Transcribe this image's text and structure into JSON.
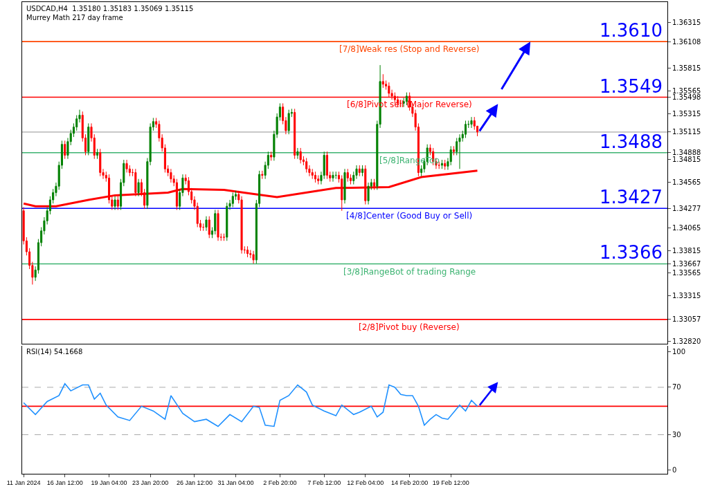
{
  "chart_data": [
    {
      "type": "candlestick",
      "title": "USDCAD,H4  1.35180 1.35183 1.35069 1.35115",
      "subtitle": "Murrey Math 217 day frame",
      "categories": [
        null,
        null,
        null,
        null,
        null,
        null,
        null,
        null,
        null,
        null,
        null,
        null,
        null,
        null,
        null,
        null,
        null,
        null,
        null,
        null,
        null,
        null,
        null,
        null,
        null,
        null,
        null,
        null,
        null,
        null,
        null,
        null,
        null,
        null,
        null,
        null,
        null,
        null,
        null,
        null,
        null,
        null,
        null,
        null,
        null,
        null,
        null,
        null,
        null,
        null,
        null,
        null,
        null,
        null,
        null,
        null,
        null,
        null,
        null,
        null,
        null,
        null,
        null,
        null,
        null,
        null,
        null,
        null,
        null,
        null,
        null,
        null,
        null,
        null,
        null,
        null,
        null,
        null,
        null,
        null,
        null,
        null,
        null,
        null,
        null,
        null,
        null,
        null,
        null,
        null,
        null,
        null,
        null,
        null,
        null,
        null,
        null,
        null,
        null,
        null,
        null,
        null,
        null,
        null,
        null,
        null,
        null,
        null,
        null,
        null,
        null,
        null,
        null,
        null,
        null,
        null,
        null,
        null,
        null,
        null,
        null,
        null,
        null,
        null,
        null,
        null,
        null,
        null,
        null,
        null,
        null,
        null,
        null,
        null,
        null,
        null,
        null,
        null,
        null,
        null,
        null,
        null,
        null,
        null,
        null,
        null,
        null,
        null,
        null,
        null,
        null,
        null,
        null,
        null,
        null,
        null,
        null,
        null,
        null,
        null,
        null,
        null,
        null,
        null,
        null,
        null,
        null,
        null,
        null,
        null,
        null,
        null,
        null,
        null,
        null,
        null,
        null,
        null,
        null,
        null,
        null,
        null,
        null,
        null,
        null,
        null,
        null,
        null,
        null,
        null,
        null,
        null,
        null,
        null,
        null,
        null,
        null,
        null,
        null,
        null,
        null,
        null,
        null,
        null,
        null,
        null,
        null,
        null,
        null,
        null,
        null,
        null,
        null,
        null,
        null,
        null,
        null,
        null,
        null
      ],
      "ohlc": [
        [
          1.3425,
          1.3429,
          1.3388,
          1.3392
        ],
        [
          1.3392,
          1.3396,
          1.3376,
          1.338
        ],
        [
          1.338,
          1.3384,
          1.3361,
          1.3365
        ],
        [
          1.3365,
          1.3369,
          1.3344,
          1.3352
        ],
        [
          1.3352,
          1.3364,
          1.3348,
          1.336
        ],
        [
          1.336,
          1.3394,
          1.3356,
          1.339
        ],
        [
          1.339,
          1.3407,
          1.3386,
          1.3403
        ],
        [
          1.3403,
          1.3418,
          1.3399,
          1.3414
        ],
        [
          1.3414,
          1.3429,
          1.341,
          1.3425
        ],
        [
          1.3425,
          1.3441,
          1.3421,
          1.3437
        ],
        [
          1.3437,
          1.3449,
          1.3433,
          1.3445
        ],
        [
          1.3445,
          1.3456,
          1.3441,
          1.3452
        ],
        [
          1.3452,
          1.3479,
          1.3448,
          1.3475
        ],
        [
          1.3475,
          1.3502,
          1.3471,
          1.3498
        ],
        [
          1.3498,
          1.3502,
          1.3482,
          1.3486
        ],
        [
          1.3486,
          1.3505,
          1.3482,
          1.3501
        ],
        [
          1.3501,
          1.3514,
          1.3497,
          1.351
        ],
        [
          1.351,
          1.3521,
          1.3506,
          1.3517
        ],
        [
          1.3517,
          1.353,
          1.3513,
          1.3526
        ],
        [
          1.3526,
          1.3536,
          1.3522,
          1.353
        ],
        [
          1.353,
          1.3534,
          1.3501,
          1.3505
        ],
        [
          1.3505,
          1.3509,
          1.3486,
          1.349
        ],
        [
          1.349,
          1.3521,
          1.3486,
          1.3517
        ],
        [
          1.3517,
          1.3521,
          1.3501,
          1.3505
        ],
        [
          1.3505,
          1.3509,
          1.3482,
          1.3486
        ],
        [
          1.3486,
          1.3493,
          1.3482,
          1.3489
        ],
        [
          1.3489,
          1.3493,
          1.3463,
          1.3467
        ],
        [
          1.3467,
          1.3471,
          1.346,
          1.3464
        ],
        [
          1.3464,
          1.3468,
          1.3457,
          1.3461
        ],
        [
          1.3461,
          1.3465,
          1.3433,
          1.3437
        ],
        [
          1.3437,
          1.3441,
          1.3426,
          1.343
        ],
        [
          1.343,
          1.3441,
          1.3426,
          1.3437
        ],
        [
          1.3437,
          1.3441,
          1.3426,
          1.343
        ],
        [
          1.343,
          1.346,
          1.3426,
          1.3456
        ],
        [
          1.3456,
          1.3481,
          1.3452,
          1.3477
        ],
        [
          1.3477,
          1.3481,
          1.3467,
          1.3471
        ],
        [
          1.3471,
          1.3475,
          1.3463,
          1.3467
        ],
        [
          1.3467,
          1.3471,
          1.3463,
          1.3467
        ],
        [
          1.3467,
          1.3471,
          1.3441,
          1.3445
        ],
        [
          1.3445,
          1.346,
          1.3441,
          1.3456
        ],
        [
          1.3456,
          1.346,
          1.3441,
          1.3445
        ],
        [
          1.3445,
          1.3449,
          1.3427,
          1.3431
        ],
        [
          1.3431,
          1.3483,
          1.3427,
          1.3479
        ],
        [
          1.3479,
          1.3521,
          1.3475,
          1.3517
        ],
        [
          1.3517,
          1.3527,
          1.3513,
          1.3523
        ],
        [
          1.3523,
          1.3527,
          1.3516,
          1.352
        ],
        [
          1.352,
          1.3524,
          1.3501,
          1.3505
        ],
        [
          1.3505,
          1.3509,
          1.349,
          1.3494
        ],
        [
          1.3494,
          1.3498,
          1.3467,
          1.3471
        ],
        [
          1.3471,
          1.3475,
          1.3463,
          1.3467
        ],
        [
          1.3467,
          1.3471,
          1.3456,
          1.346
        ],
        [
          1.346,
          1.3464,
          1.3452,
          1.3456
        ],
        [
          1.3456,
          1.346,
          1.3426,
          1.343
        ],
        [
          1.343,
          1.3449,
          1.3426,
          1.3445
        ],
        [
          1.3445,
          1.3465,
          1.3441,
          1.3461
        ],
        [
          1.3461,
          1.3465,
          1.3454,
          1.3458
        ],
        [
          1.3458,
          1.3462,
          1.3442,
          1.3446
        ],
        [
          1.3446,
          1.345,
          1.3433,
          1.3437
        ],
        [
          1.3437,
          1.3441,
          1.3426,
          1.343
        ],
        [
          1.343,
          1.3434,
          1.3407,
          1.3411
        ],
        [
          1.3411,
          1.3415,
          1.3403,
          1.3407
        ],
        [
          1.3407,
          1.3411,
          1.3403,
          1.3407
        ],
        [
          1.3407,
          1.3419,
          1.3403,
          1.3415
        ],
        [
          1.3415,
          1.3419,
          1.3395,
          1.3399
        ],
        [
          1.3399,
          1.3407,
          1.3395,
          1.3403
        ],
        [
          1.3403,
          1.3426,
          1.3399,
          1.3422
        ],
        [
          1.3422,
          1.3426,
          1.3392,
          1.3396
        ],
        [
          1.3396,
          1.34,
          1.3392,
          1.3396
        ],
        [
          1.3396,
          1.34,
          1.3392,
          1.3396
        ],
        [
          1.3396,
          1.3434,
          1.3392,
          1.343
        ],
        [
          1.343,
          1.3437,
          1.3426,
          1.3433
        ],
        [
          1.3433,
          1.3445,
          1.3429,
          1.3441
        ],
        [
          1.3441,
          1.3447,
          1.3437,
          1.3443
        ],
        [
          1.3443,
          1.3447,
          1.3433,
          1.3437
        ],
        [
          1.3437,
          1.3441,
          1.3378,
          1.3382
        ],
        [
          1.3382,
          1.3386,
          1.3378,
          1.3382
        ],
        [
          1.3382,
          1.3386,
          1.3374,
          1.3378
        ],
        [
          1.3378,
          1.3382,
          1.3373,
          1.3377
        ],
        [
          1.3377,
          1.3381,
          1.3367,
          1.3371
        ],
        [
          1.3371,
          1.3437,
          1.3367,
          1.3433
        ],
        [
          1.3433,
          1.3469,
          1.3429,
          1.3465
        ],
        [
          1.3465,
          1.3469,
          1.346,
          1.3464
        ],
        [
          1.3464,
          1.3479,
          1.346,
          1.3475
        ],
        [
          1.3475,
          1.349,
          1.3471,
          1.3486
        ],
        [
          1.3486,
          1.349,
          1.348,
          1.3484
        ],
        [
          1.3484,
          1.3513,
          1.348,
          1.3509
        ],
        [
          1.3509,
          1.3532,
          1.3505,
          1.3528
        ],
        [
          1.3528,
          1.3543,
          1.3524,
          1.3539
        ],
        [
          1.3539,
          1.3543,
          1.352,
          1.3524
        ],
        [
          1.3524,
          1.3528,
          1.3509,
          1.3513
        ],
        [
          1.3513,
          1.3536,
          1.3509,
          1.3532
        ],
        [
          1.3532,
          1.3537,
          1.3528,
          1.3533
        ],
        [
          1.3533,
          1.3537,
          1.3482,
          1.3486
        ],
        [
          1.3486,
          1.3494,
          1.3482,
          1.349
        ],
        [
          1.349,
          1.3494,
          1.3477,
          1.3481
        ],
        [
          1.3481,
          1.3485,
          1.3475,
          1.3479
        ],
        [
          1.3479,
          1.3483,
          1.3467,
          1.3471
        ],
        [
          1.3471,
          1.3475,
          1.3463,
          1.3467
        ],
        [
          1.3467,
          1.3471,
          1.346,
          1.3464
        ],
        [
          1.3464,
          1.3468,
          1.3456,
          1.346
        ],
        [
          1.346,
          1.3464,
          1.3454,
          1.3458
        ],
        [
          1.3458,
          1.3468,
          1.3454,
          1.3464
        ],
        [
          1.3464,
          1.349,
          1.346,
          1.3486
        ],
        [
          1.3486,
          1.349,
          1.346,
          1.3464
        ],
        [
          1.3464,
          1.3468,
          1.3457,
          1.3461
        ],
        [
          1.3461,
          1.3468,
          1.3457,
          1.3464
        ],
        [
          1.3464,
          1.3468,
          1.346,
          1.3464
        ],
        [
          1.3464,
          1.3468,
          1.3456,
          1.346
        ],
        [
          1.346,
          1.3464,
          1.3425,
          1.3437
        ],
        [
          1.3437,
          1.3471,
          1.3433,
          1.3467
        ],
        [
          1.3467,
          1.3471,
          1.3457,
          1.3461
        ],
        [
          1.3461,
          1.3465,
          1.3454,
          1.3458
        ],
        [
          1.3458,
          1.3468,
          1.3454,
          1.3464
        ],
        [
          1.3464,
          1.3475,
          1.346,
          1.3471
        ],
        [
          1.3471,
          1.3475,
          1.3463,
          1.3467
        ],
        [
          1.3467,
          1.3475,
          1.3463,
          1.3471
        ],
        [
          1.3471,
          1.3475,
          1.3432,
          1.3436
        ],
        [
          1.3436,
          1.3456,
          1.3432,
          1.3452
        ],
        [
          1.3452,
          1.346,
          1.3448,
          1.3456
        ],
        [
          1.3456,
          1.346,
          1.3448,
          1.3452
        ],
        [
          1.3452,
          1.3524,
          1.3448,
          1.352
        ],
        [
          1.352,
          1.3585,
          1.3516,
          1.3567
        ],
        [
          1.3567,
          1.3575,
          1.356,
          1.3564
        ],
        [
          1.3564,
          1.3568,
          1.3558,
          1.3562
        ],
        [
          1.3562,
          1.3566,
          1.355,
          1.3554
        ],
        [
          1.3554,
          1.3558,
          1.3547,
          1.3551
        ],
        [
          1.3551,
          1.3555,
          1.3543,
          1.3547
        ],
        [
          1.3547,
          1.3551,
          1.3539,
          1.3543
        ],
        [
          1.3543,
          1.3547,
          1.3539,
          1.3543
        ],
        [
          1.3543,
          1.3549,
          1.3539,
          1.3545
        ],
        [
          1.3545,
          1.3555,
          1.3541,
          1.3551
        ],
        [
          1.3551,
          1.3555,
          1.3535,
          1.3539
        ],
        [
          1.3539,
          1.3543,
          1.3528,
          1.3532
        ],
        [
          1.3532,
          1.3536,
          1.3513,
          1.3517
        ],
        [
          1.3517,
          1.3521,
          1.3463,
          1.3467
        ],
        [
          1.3467,
          1.3475,
          1.3463,
          1.3471
        ],
        [
          1.3471,
          1.3483,
          1.3467,
          1.3479
        ],
        [
          1.3479,
          1.3498,
          1.3475,
          1.3494
        ],
        [
          1.3494,
          1.3498,
          1.3486,
          1.349
        ],
        [
          1.349,
          1.3494,
          1.3475,
          1.3479
        ],
        [
          1.3479,
          1.3483,
          1.3471,
          1.3475
        ],
        [
          1.3475,
          1.3479,
          1.3471,
          1.3475
        ],
        [
          1.3475,
          1.3481,
          1.3471,
          1.3477
        ],
        [
          1.3477,
          1.3481,
          1.347,
          1.3474
        ],
        [
          1.3474,
          1.3483,
          1.347,
          1.3479
        ],
        [
          1.3479,
          1.3496,
          1.3475,
          1.3492
        ],
        [
          1.3492,
          1.3496,
          1.3486,
          1.349
        ],
        [
          1.349,
          1.3505,
          1.3486,
          1.3501
        ],
        [
          1.3501,
          1.3509,
          1.3471,
          1.3505
        ],
        [
          1.3505,
          1.3513,
          1.3501,
          1.3509
        ],
        [
          1.3509,
          1.3524,
          1.3505,
          1.352
        ],
        [
          1.352,
          1.3524,
          1.3516,
          1.352
        ],
        [
          1.352,
          1.3528,
          1.3516,
          1.3524
        ],
        [
          1.3524,
          1.3528,
          1.3514,
          1.3518
        ],
        [
          1.3518,
          1.35183,
          1.35069,
          1.35115
        ],
        null,
        null,
        null,
        null,
        null,
        null,
        null,
        null,
        null,
        null,
        null,
        null,
        null,
        null,
        null,
        null,
        null,
        null,
        null,
        null,
        null,
        null,
        null,
        null,
        null,
        null,
        null,
        null,
        null,
        null,
        null,
        null,
        null,
        null,
        null,
        null,
        null,
        null,
        null,
        null,
        null,
        null,
        null,
        null,
        null,
        null,
        null,
        null,
        null,
        null,
        null,
        null,
        null,
        null,
        null,
        null,
        null,
        null,
        null,
        null,
        null,
        null,
        null,
        null
      ],
      "series": [
        {
          "type": "line",
          "color": "#ff0000",
          "values": [
            1.3433,
            null,
            null,
            null,
            1.343,
            null,
            null,
            null,
            null,
            null,
            null,
            1.343,
            null,
            null,
            null,
            null,
            null,
            null,
            null,
            null,
            null,
            null,
            1.3437,
            null,
            null,
            null,
            null,
            null,
            null,
            null,
            null,
            1.3442,
            null,
            null,
            null,
            null,
            null,
            null,
            null,
            null,
            null,
            null,
            null,
            null,
            null,
            null,
            null,
            null,
            null,
            1.3445,
            null,
            null,
            null,
            null,
            1.3449,
            null,
            null,
            null,
            null,
            null,
            null,
            null,
            null,
            null,
            null,
            null,
            null,
            null,
            1.3448,
            null,
            null,
            null,
            null,
            null,
            null,
            null,
            null,
            null,
            null,
            1.3443,
            null,
            null,
            null,
            null,
            null,
            null,
            1.344,
            null,
            null,
            null,
            null,
            null,
            null,
            null,
            null,
            null,
            null,
            null,
            null,
            null,
            null,
            null,
            null,
            null,
            null,
            null,
            1.345,
            null,
            null,
            null,
            null,
            null,
            null,
            null,
            null,
            null,
            null,
            null,
            null,
            null,
            null,
            null,
            null,
            null,
            1.3451,
            null,
            null,
            null,
            null,
            null,
            null,
            null,
            null,
            null,
            null,
            1.3462,
            null,
            null,
            null,
            null,
            null,
            null,
            null,
            null,
            null,
            null,
            null,
            null,
            null,
            null,
            null,
            null,
            null,
            null,
            1.3469,
            null,
            null,
            null,
            null,
            null,
            null,
            null,
            null,
            null,
            null,
            null,
            null,
            null,
            null,
            null,
            null,
            null,
            null,
            null,
            null,
            null,
            null,
            null,
            null,
            null,
            null,
            null,
            null,
            null,
            null,
            null,
            null,
            null,
            null,
            null,
            null,
            null,
            null,
            null,
            null,
            null,
            null,
            null,
            null,
            null,
            null,
            null,
            null,
            null,
            null,
            null,
            null,
            null,
            null,
            null,
            null,
            null,
            null,
            null,
            null,
            null,
            null,
            null,
            null
          ]
        }
      ],
      "ylim": [
        1.3279,
        1.36542
      ],
      "yticks": [
        1.36315,
        1.36108,
        1.35815,
        1.35565,
        1.35498,
        1.35315,
        1.35115,
        1.34888,
        1.34815,
        1.34565,
        1.34277,
        1.34065,
        1.33815,
        1.33667,
        1.33565,
        1.33315,
        1.33057,
        {
          "value": 1.3282,
          "label": "1.32820"
        }
      ],
      "ref_lines": [
        {
          "axis": "y",
          "value": 1.36108,
          "label": "[7/8]Weak res (Stop and Reverse)",
          "color": "#ff4500"
        },
        {
          "axis": "y",
          "value": 1.35498,
          "label": "[6/8]Pivot sell (Major Reverse)",
          "color": "#ff0000"
        },
        {
          "axis": "y",
          "value": 1.34888,
          "label": "[5/8]RangeTop",
          "color": "#3cb371"
        },
        {
          "axis": "y",
          "value": 1.34277,
          "label": "[4/8]Center (Good Buy or Sell)",
          "color": "#0000ff"
        },
        {
          "axis": "y",
          "value": 1.33667,
          "label": "[3/8]RangeBot of trading Range",
          "color": "#3cb371"
        },
        {
          "axis": "y",
          "value": 1.33057,
          "label": "[2/8]Pivot buy (Reverse)",
          "color": "#ff0000"
        },
        {
          "axis": "y",
          "value": 1.35115,
          "color": "#c0c0c0"
        }
      ],
      "annotations": [
        {
          "text": "1.3610",
          "y": 1.361
        },
        {
          "text": "1.3549",
          "y": 1.3549
        },
        {
          "text": "1.3488",
          "y": 1.3488
        },
        {
          "text": "1.3427",
          "y": 1.3427
        },
        {
          "text": "1.3366",
          "y": 1.3366
        }
      ],
      "tick_labels": "y"
    },
    {
      "type": "line",
      "title": "RSI(14) 54.1668",
      "categories": [
        "11 Jan 2024",
        null,
        null,
        null,
        null,
        null,
        null,
        null,
        null,
        null,
        null,
        null,
        null,
        null,
        "16 Jan 12:00",
        null,
        null,
        null,
        null,
        null,
        null,
        null,
        null,
        null,
        null,
        null,
        null,
        null,
        null,
        "19 Jan 04:00",
        null,
        null,
        null,
        null,
        null,
        null,
        null,
        null,
        null,
        null,
        null,
        null,
        null,
        "23 Jan 20:00",
        null,
        null,
        null,
        null,
        null,
        null,
        null,
        null,
        null,
        null,
        null,
        null,
        null,
        null,
        "26 Jan 12:00",
        null,
        null,
        null,
        null,
        null,
        null,
        null,
        null,
        null,
        null,
        null,
        null,
        null,
        "31 Jan 04:00",
        null,
        null,
        null,
        null,
        null,
        null,
        null,
        null,
        null,
        null,
        null,
        null,
        null,
        null,
        "2 Feb 20:00",
        null,
        null,
        null,
        null,
        null,
        null,
        null,
        null,
        null,
        null,
        null,
        null,
        null,
        null,
        "7 Feb 12:00",
        null,
        null,
        null,
        null,
        null,
        null,
        null,
        null,
        null,
        null,
        null,
        null,
        null,
        "12 Feb 04:00",
        null,
        null,
        null,
        null,
        null,
        null,
        null,
        null,
        null,
        null,
        null,
        null,
        null,
        null,
        "14 Feb 20:00",
        null,
        null,
        null,
        null,
        null,
        null,
        null,
        null,
        null,
        null,
        null,
        null,
        null,
        "19 Feb 12:00",
        null,
        null,
        null,
        null,
        null,
        null,
        null,
        null,
        null,
        null,
        null,
        null,
        null,
        null,
        null,
        null,
        null,
        null,
        null,
        null,
        null,
        null,
        null,
        null,
        null,
        null,
        null,
        null,
        null,
        null,
        null,
        null,
        null,
        null,
        null,
        null,
        null,
        null,
        null,
        null,
        null,
        null,
        null,
        null,
        null,
        null,
        null,
        null,
        null,
        null,
        null,
        null,
        null,
        null,
        null,
        null,
        null,
        null,
        null,
        null,
        null,
        null,
        null,
        null,
        null,
        null,
        null,
        null,
        null,
        null,
        null,
        null,
        null
      ],
      "series": [
        {
          "color": "#1e90ff",
          "values": [
            57,
            null,
            null,
            null,
            47,
            null,
            null,
            null,
            58,
            null,
            null,
            null,
            63,
            null,
            73,
            null,
            67,
            null,
            null,
            null,
            72,
            null,
            72,
            null,
            60,
            null,
            65,
            null,
            55,
            null,
            null,
            null,
            45,
            null,
            null,
            null,
            42,
            null,
            null,
            null,
            54,
            null,
            null,
            null,
            50,
            null,
            null,
            null,
            43,
            null,
            63,
            null,
            null,
            null,
            48,
            null,
            null,
            null,
            41,
            null,
            null,
            null,
            43,
            null,
            null,
            null,
            37,
            null,
            null,
            null,
            47,
            null,
            null,
            null,
            41,
            null,
            null,
            null,
            54,
            null,
            53,
            null,
            38,
            null,
            null,
            37,
            null,
            59,
            null,
            null,
            63,
            null,
            null,
            72,
            null,
            null,
            66,
            null,
            55,
            null,
            null,
            null,
            50,
            null,
            null,
            null,
            46,
            null,
            55,
            null,
            null,
            null,
            47,
            null,
            49,
            null,
            null,
            null,
            54,
            null,
            45,
            null,
            49,
            null,
            72,
            null,
            70,
            null,
            64,
            null,
            63,
            null,
            63,
            null,
            54,
            null,
            38,
            null,
            43,
            null,
            47,
            null,
            44,
            null,
            43,
            null,
            49,
            null,
            55,
            null,
            50,
            null,
            59,
            null,
            54,
            null,
            null,
            null,
            null,
            null,
            null,
            null,
            null,
            null,
            null,
            null,
            null,
            null,
            null,
            null,
            null,
            null,
            null,
            null,
            null,
            null,
            null,
            null,
            null,
            null,
            null,
            null,
            null,
            null,
            null,
            null,
            null,
            null,
            null,
            null,
            null,
            null,
            null,
            null,
            null,
            null,
            null,
            null,
            null,
            null,
            null,
            null,
            null,
            null,
            null,
            null,
            null,
            null,
            null,
            null,
            null,
            null,
            null,
            null,
            null,
            null,
            null,
            null,
            null
          ]
        }
      ],
      "ylim": [
        -3,
        105
      ],
      "yticks": [
        0,
        30,
        70,
        100
      ],
      "ref_lines": [
        {
          "axis": "y",
          "value": 30,
          "color": "#a9a9a9",
          "line_style": "dashed"
        },
        {
          "axis": "y",
          "value": 70,
          "color": "#a9a9a9",
          "line_style": "dashed"
        },
        {
          "axis": "y",
          "value": 54,
          "color": "#ff0000"
        }
      ]
    }
  ]
}
